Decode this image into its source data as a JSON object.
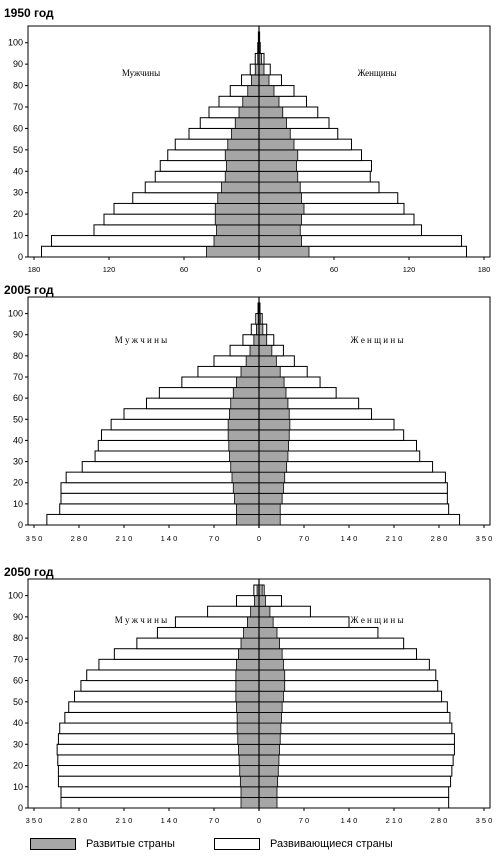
{
  "colors": {
    "developed": "#a6a6a6",
    "developing": "#ffffff",
    "stroke": "#000000"
  },
  "legend": {
    "developed": "Развитые страны",
    "developing": "Развивающиеся страны"
  },
  "chart_data": [
    {
      "type": "bar",
      "title": "1950 год",
      "left_label": "Мужчины",
      "right_label": "Женщины",
      "y_ticks": [
        0,
        10,
        20,
        30,
        40,
        50,
        60,
        70,
        80,
        90,
        100
      ],
      "x_ticks": [
        "180",
        "120",
        "60",
        "0",
        "60",
        "120",
        "180"
      ],
      "xlim": 180,
      "age_groups": [
        "0-4",
        "5-9",
        "10-14",
        "15-19",
        "20-24",
        "25-29",
        "30-34",
        "35-39",
        "40-44",
        "45-49",
        "50-54",
        "55-59",
        "60-64",
        "65-69",
        "70-74",
        "75-79",
        "80-84",
        "85-89",
        "90-94",
        "95-99",
        "100+"
      ],
      "series": [
        {
          "name": "Развитые страны",
          "male": [
            42,
            36,
            34,
            35,
            35,
            33,
            30,
            27,
            26,
            27,
            25,
            22,
            19,
            16,
            13,
            9,
            6,
            3,
            1,
            0.5,
            0.2
          ],
          "female": [
            40,
            34,
            33,
            34,
            36,
            34,
            33,
            31,
            30,
            31,
            28,
            25,
            22,
            19,
            16,
            12,
            8,
            4,
            2,
            0.8,
            0.3
          ]
        },
        {
          "name": "Развивающиеся страны",
          "total_male": [
            174,
            166,
            132,
            124,
            116,
            101,
            91,
            83,
            79,
            73,
            67,
            56,
            47,
            40,
            32,
            23,
            14,
            7,
            3,
            1,
            0.5
          ],
          "total_female": [
            166,
            162,
            130,
            124,
            116,
            111,
            96,
            89,
            90,
            82,
            74,
            63,
            56,
            47,
            38,
            28,
            18,
            9,
            4,
            1,
            0.5
          ]
        }
      ]
    },
    {
      "type": "bar",
      "title": "2005 год",
      "left_label": "М у ж ч и н ы",
      "right_label": "Ж е н щ и н ы",
      "y_ticks": [
        0,
        10,
        20,
        30,
        40,
        50,
        60,
        70,
        80,
        90,
        100
      ],
      "x_ticks": [
        "3 5 0",
        "2 8 0",
        "2 1 0",
        "1 4 0",
        "7 0",
        "0",
        "7 0",
        "1 4 0",
        "2 1 0",
        "2 8 0",
        "3 5 0"
      ],
      "xlim": 350,
      "age_groups": [
        "0-4",
        "5-9",
        "10-14",
        "15-19",
        "20-24",
        "25-29",
        "30-34",
        "35-39",
        "40-44",
        "45-49",
        "50-54",
        "55-59",
        "60-64",
        "65-69",
        "70-74",
        "75-79",
        "80-84",
        "85-89",
        "90-94",
        "95-99",
        "100+"
      ],
      "series": [
        {
          "name": "Развитые страны",
          "male": [
            35,
            35,
            38,
            40,
            42,
            44,
            46,
            47,
            48,
            48,
            46,
            44,
            40,
            35,
            28,
            20,
            14,
            8,
            4,
            1.5,
            0.5
          ],
          "female": [
            33,
            33,
            36,
            38,
            40,
            43,
            45,
            46,
            47,
            48,
            47,
            45,
            42,
            39,
            33,
            27,
            20,
            12,
            6,
            2,
            0.8
          ]
        },
        {
          "name": "Развивающиеся страны",
          "total_male": [
            330,
            310,
            308,
            308,
            300,
            275,
            255,
            250,
            245,
            230,
            210,
            175,
            155,
            120,
            95,
            70,
            45,
            25,
            12,
            5,
            1.5
          ],
          "total_female": [
            312,
            295,
            293,
            293,
            290,
            270,
            250,
            245,
            225,
            210,
            175,
            155,
            120,
            95,
            75,
            55,
            38,
            23,
            12,
            5,
            1.5
          ]
        }
      ]
    },
    {
      "type": "bar",
      "title": "2050 год",
      "left_label": "М у ж ч и н ы",
      "right_label": "Ж е н щ и н ы",
      "y_ticks": [
        0,
        10,
        20,
        30,
        40,
        50,
        60,
        70,
        80,
        90,
        100
      ],
      "x_ticks": [
        "3 5 0",
        "2 8 0",
        "2 1 0",
        "1 4 0",
        "7 0",
        "0",
        "7 0",
        "1 4 0",
        "2 1 0",
        "2 8 0",
        "3 5 0"
      ],
      "xlim": 350,
      "age_groups": [
        "0-4",
        "5-9",
        "10-14",
        "15-19",
        "20-24",
        "25-29",
        "30-34",
        "35-39",
        "40-44",
        "45-49",
        "50-54",
        "55-59",
        "60-64",
        "65-69",
        "70-74",
        "75-79",
        "80-84",
        "85-89",
        "90-94",
        "95-99",
        "100+"
      ],
      "series": [
        {
          "name": "Развитые страны",
          "male": [
            28,
            28,
            29,
            30,
            31,
            32,
            33,
            34,
            34,
            35,
            36,
            36,
            36,
            35,
            32,
            28,
            24,
            18,
            13,
            7,
            3
          ],
          "female": [
            28,
            28,
            29,
            30,
            31,
            32,
            33,
            34,
            35,
            36,
            38,
            40,
            40,
            38,
            36,
            32,
            28,
            22,
            17,
            10,
            5
          ]
        },
        {
          "name": "Развивающиеся страны",
          "total_male": [
            308,
            308,
            312,
            312,
            313,
            314,
            312,
            310,
            302,
            296,
            287,
            277,
            268,
            249,
            225,
            190,
            158,
            130,
            80,
            35,
            8
          ],
          "total_female": [
            295,
            295,
            298,
            300,
            302,
            304,
            304,
            300,
            297,
            293,
            284,
            278,
            275,
            265,
            245,
            225,
            185,
            140,
            80,
            35,
            8
          ]
        }
      ]
    }
  ]
}
